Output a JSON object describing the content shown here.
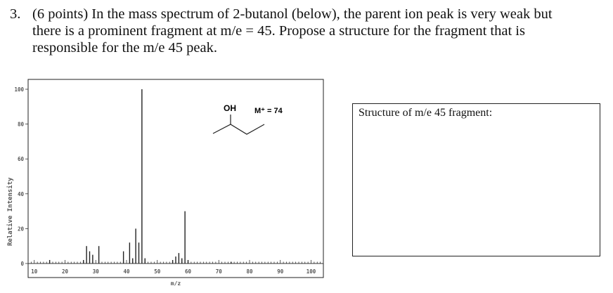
{
  "question": {
    "number": "3.",
    "lines": [
      "(6 points) In the mass spectrum of 2-butanol (below), the parent ion peak is very weak but",
      "there is a prominent fragment at m/e = 45.  Propose a structure for the fragment that is",
      "responsible for the m/e 45 peak."
    ]
  },
  "answer_box": {
    "label": "Structure of m/e 45 fragment:"
  },
  "molecule": {
    "oh_label": "OH",
    "mplus_label": "M⁺ = 74"
  },
  "chart_data": {
    "type": "bar",
    "title": "",
    "xlabel": "m/z",
    "ylabel": "Relative Intensity",
    "xlim": [
      8,
      104
    ],
    "ylim": [
      0,
      100
    ],
    "x_ticks": [
      10,
      20,
      30,
      40,
      50,
      60,
      70,
      80,
      90,
      100
    ],
    "y_ticks": [
      0,
      20,
      40,
      60,
      80,
      100
    ],
    "grid": false,
    "peaks": [
      {
        "mz": 15,
        "intensity": 2
      },
      {
        "mz": 26,
        "intensity": 2
      },
      {
        "mz": 27,
        "intensity": 10
      },
      {
        "mz": 28,
        "intensity": 7
      },
      {
        "mz": 29,
        "intensity": 5
      },
      {
        "mz": 31,
        "intensity": 10
      },
      {
        "mz": 39,
        "intensity": 7
      },
      {
        "mz": 41,
        "intensity": 12
      },
      {
        "mz": 42,
        "intensity": 3
      },
      {
        "mz": 43,
        "intensity": 20
      },
      {
        "mz": 44,
        "intensity": 12
      },
      {
        "mz": 45,
        "intensity": 100
      },
      {
        "mz": 46,
        "intensity": 3
      },
      {
        "mz": 55,
        "intensity": 2
      },
      {
        "mz": 56,
        "intensity": 4
      },
      {
        "mz": 57,
        "intensity": 6
      },
      {
        "mz": 58,
        "intensity": 3
      },
      {
        "mz": 59,
        "intensity": 30
      },
      {
        "mz": 60,
        "intensity": 2
      },
      {
        "mz": 74,
        "intensity": 1
      }
    ]
  }
}
